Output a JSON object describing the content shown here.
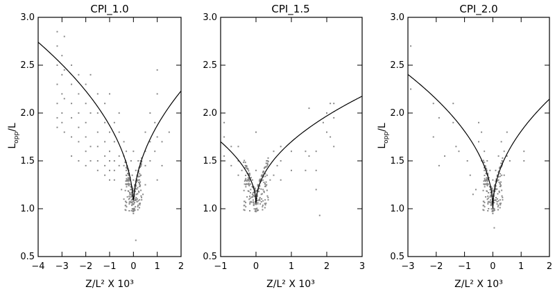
{
  "chart_data": [
    {
      "type": "scatter",
      "title": "CPI_1.0",
      "xlabel": "Z/L² X 10³",
      "ylabel_main": "L",
      "ylabel_sub": "opp",
      "ylabel_tail": "/L",
      "xlim": [
        -4,
        2
      ],
      "ylim": [
        0.5,
        3.0
      ],
      "xticks": [
        -4,
        -3,
        -2,
        -1,
        0,
        1,
        2
      ],
      "yticks": [
        0.5,
        1.0,
        1.5,
        2.0,
        2.5,
        3.0
      ],
      "xtick_labels": [
        "−4",
        "−3",
        "−2",
        "−1",
        "0",
        "1",
        "2"
      ],
      "ytick_labels": [
        "0.5",
        "1.0",
        "1.5",
        "2.0",
        "2.5",
        "3.0"
      ],
      "fit_curve": {
        "a": 1.0,
        "b": 0.87,
        "xmin": -4,
        "xmax": 2
      },
      "points": [
        [
          -3.2,
          2.85
        ],
        [
          -3.2,
          2.7
        ],
        [
          -3.2,
          2.5
        ],
        [
          -3.2,
          2.3
        ],
        [
          -3.2,
          2.1
        ],
        [
          -3.2,
          1.95
        ],
        [
          -3.2,
          1.85
        ],
        [
          -3.0,
          2.6
        ],
        [
          -3.0,
          2.4
        ],
        [
          -3.0,
          2.2
        ],
        [
          -3.0,
          2.0
        ],
        [
          -3.0,
          1.9
        ],
        [
          -2.9,
          2.8
        ],
        [
          -2.9,
          2.45
        ],
        [
          -2.9,
          2.15
        ],
        [
          -2.9,
          1.8
        ],
        [
          -2.6,
          2.5
        ],
        [
          -2.6,
          2.3
        ],
        [
          -2.6,
          2.1
        ],
        [
          -2.6,
          1.95
        ],
        [
          -2.6,
          1.75
        ],
        [
          -2.6,
          1.55
        ],
        [
          -2.3,
          2.4
        ],
        [
          -2.3,
          2.2
        ],
        [
          -2.3,
          2.0
        ],
        [
          -2.3,
          1.85
        ],
        [
          -2.3,
          1.7
        ],
        [
          -2.3,
          1.5
        ],
        [
          -2.0,
          2.3
        ],
        [
          -2.0,
          2.1
        ],
        [
          -2.0,
          1.9
        ],
        [
          -2.0,
          1.75
        ],
        [
          -2.0,
          1.6
        ],
        [
          -2.0,
          1.45
        ],
        [
          -1.8,
          2.4
        ],
        [
          -1.8,
          2.0
        ],
        [
          -1.8,
          1.65
        ],
        [
          -1.8,
          1.5
        ],
        [
          -1.5,
          2.2
        ],
        [
          -1.5,
          2.0
        ],
        [
          -1.5,
          1.8
        ],
        [
          -1.5,
          1.65
        ],
        [
          -1.5,
          1.5
        ],
        [
          -1.5,
          1.4
        ],
        [
          -1.2,
          2.1
        ],
        [
          -1.2,
          1.9
        ],
        [
          -1.2,
          1.7
        ],
        [
          -1.2,
          1.55
        ],
        [
          -1.2,
          1.45
        ],
        [
          -1.2,
          1.35
        ],
        [
          -1.0,
          2.2
        ],
        [
          -1.0,
          1.8
        ],
        [
          -1.0,
          1.6
        ],
        [
          -1.0,
          1.5
        ],
        [
          -1.0,
          1.4
        ],
        [
          -0.8,
          1.9
        ],
        [
          -0.8,
          1.7
        ],
        [
          -0.8,
          1.5
        ],
        [
          -0.8,
          1.4
        ],
        [
          -0.8,
          1.3
        ],
        [
          -0.6,
          2.0
        ],
        [
          -0.6,
          1.8
        ],
        [
          -0.6,
          1.55
        ],
        [
          -0.6,
          1.45
        ],
        [
          -0.4,
          1.7
        ],
        [
          -0.4,
          1.55
        ],
        [
          -0.4,
          1.45
        ],
        [
          -0.3,
          1.6
        ],
        [
          -0.3,
          1.4
        ],
        [
          -0.3,
          1.35
        ],
        [
          -0.25,
          1.3
        ],
        [
          -0.2,
          1.35
        ],
        [
          -0.2,
          1.25
        ],
        [
          -0.15,
          1.3
        ],
        [
          -0.12,
          1.2
        ],
        [
          -0.1,
          1.25
        ],
        [
          -0.1,
          1.15
        ],
        [
          -0.06,
          1.2
        ],
        [
          -0.05,
          1.1
        ],
        [
          -0.03,
          1.05
        ],
        [
          -0.02,
          1.0
        ],
        [
          0.0,
          0.95
        ],
        [
          0.01,
          1.05
        ],
        [
          0.02,
          1.12
        ],
        [
          0.04,
          1.0
        ],
        [
          0.05,
          1.2
        ],
        [
          0.07,
          1.1
        ],
        [
          0.1,
          1.25
        ],
        [
          0.12,
          1.15
        ],
        [
          0.15,
          1.3
        ],
        [
          0.18,
          1.22
        ],
        [
          0.2,
          1.4
        ],
        [
          0.25,
          1.3
        ],
        [
          0.3,
          1.5
        ],
        [
          0.3,
          1.35
        ],
        [
          0.5,
          1.6
        ],
        [
          0.5,
          1.45
        ],
        [
          0.5,
          1.8
        ],
        [
          0.7,
          1.7
        ],
        [
          0.7,
          1.5
        ],
        [
          0.7,
          2.0
        ],
        [
          0.9,
          1.9
        ],
        [
          0.9,
          1.6
        ],
        [
          1.0,
          2.45
        ],
        [
          1.0,
          2.2
        ],
        [
          1.0,
          1.75
        ],
        [
          1.2,
          1.7
        ],
        [
          1.5,
          1.8
        ],
        [
          -0.5,
          1.2
        ],
        [
          -0.4,
          1.1
        ],
        [
          0.4,
          1.15
        ],
        [
          0.5,
          1.25
        ],
        [
          -1.0,
          1.3
        ],
        [
          1.0,
          1.3
        ],
        [
          1.2,
          1.45
        ],
        [
          0.1,
          0.67
        ],
        [
          -0.2,
          1.4
        ],
        [
          0.2,
          1.5
        ],
        [
          0.0,
          1.6
        ],
        [
          -0.1,
          1.5
        ],
        [
          0.1,
          1.4
        ],
        [
          0.0,
          1.3
        ],
        [
          -0.05,
          1.35
        ],
        [
          0.05,
          1.25
        ],
        [
          -0.15,
          1.15
        ],
        [
          0.15,
          1.1
        ],
        [
          -0.08,
          0.98
        ],
        [
          0.08,
          1.02
        ]
      ]
    },
    {
      "type": "scatter",
      "title": "CPI_1.5",
      "xlabel": "Z/L² X 10³",
      "xlim": [
        -1,
        3
      ],
      "ylim": [
        0.5,
        3.0
      ],
      "xticks": [
        -1,
        0,
        1,
        2,
        3
      ],
      "yticks": [
        0.5,
        1.0,
        1.5,
        2.0,
        2.5,
        3.0
      ],
      "xtick_labels": [
        "−1",
        "0",
        "1",
        "2",
        "3"
      ],
      "ytick_labels": [
        "0.5",
        "1.0",
        "1.5",
        "2.0",
        "2.5",
        "3.0"
      ],
      "fit_curve": {
        "a": 1.05,
        "b": 0.65,
        "xmin": -1,
        "xmax": 3
      },
      "points": [
        [
          -0.9,
          1.75
        ],
        [
          -0.9,
          1.55
        ],
        [
          -0.9,
          1.9
        ],
        [
          -0.7,
          1.65
        ],
        [
          -0.7,
          1.45
        ],
        [
          -0.5,
          1.5
        ],
        [
          -0.5,
          1.35
        ],
        [
          -0.5,
          1.65
        ],
        [
          -0.4,
          1.4
        ],
        [
          -0.3,
          1.3
        ],
        [
          -0.3,
          1.45
        ],
        [
          -0.2,
          1.25
        ],
        [
          -0.2,
          1.35
        ],
        [
          -0.15,
          1.2
        ],
        [
          -0.1,
          1.15
        ],
        [
          -0.1,
          1.3
        ],
        [
          -0.05,
          1.05
        ],
        [
          -0.05,
          1.2
        ],
        [
          0.0,
          1.0
        ],
        [
          0.0,
          1.1
        ],
        [
          0.0,
          1.4
        ],
        [
          0.0,
          1.8
        ],
        [
          0.05,
          1.05
        ],
        [
          0.05,
          1.25
        ],
        [
          0.1,
          1.1
        ],
        [
          0.1,
          1.3
        ],
        [
          0.15,
          1.15
        ],
        [
          0.2,
          1.2
        ],
        [
          0.2,
          1.35
        ],
        [
          0.3,
          1.25
        ],
        [
          0.3,
          1.5
        ],
        [
          0.4,
          1.3
        ],
        [
          0.5,
          1.35
        ],
        [
          0.5,
          1.6
        ],
        [
          0.6,
          1.45
        ],
        [
          0.7,
          1.65
        ],
        [
          0.7,
          1.5
        ],
        [
          0.7,
          1.3
        ],
        [
          1.0,
          1.6
        ],
        [
          1.0,
          1.4
        ],
        [
          1.4,
          1.4
        ],
        [
          1.4,
          1.6
        ],
        [
          1.5,
          2.05
        ],
        [
          1.5,
          1.55
        ],
        [
          1.7,
          1.4
        ],
        [
          1.7,
          1.2
        ],
        [
          1.7,
          1.6
        ],
        [
          1.8,
          0.93
        ],
        [
          1.9,
          1.9
        ],
        [
          2.0,
          1.8
        ],
        [
          2.0,
          2.0
        ],
        [
          2.1,
          2.1
        ],
        [
          2.1,
          1.75
        ],
        [
          2.2,
          1.65
        ],
        [
          2.2,
          1.95
        ],
        [
          2.2,
          2.1
        ],
        [
          -0.08,
          1.22
        ],
        [
          0.08,
          1.18
        ],
        [
          -0.12,
          1.12
        ],
        [
          0.12,
          1.05
        ]
      ]
    },
    {
      "type": "scatter",
      "title": "CPI_2.0",
      "xlabel": "Z/L² X 10³",
      "ylabel_main": "L",
      "ylabel_sub": "opp",
      "ylabel_tail": "/L",
      "xlim": [
        -3,
        2
      ],
      "ylim": [
        0.5,
        3.0
      ],
      "xticks": [
        -3,
        -2,
        -1,
        0,
        1,
        2
      ],
      "yticks": [
        0.5,
        1.0,
        1.5,
        2.0,
        2.5,
        3.0
      ],
      "xtick_labels": [
        "−3",
        "−2",
        "−1",
        "0",
        "1",
        "2"
      ],
      "ytick_labels": [
        "0.5",
        "1.0",
        "1.5",
        "2.0",
        "2.5",
        "3.0"
      ],
      "fit_curve": {
        "a": 1.0,
        "b": 0.81,
        "xmin": -3,
        "xmax": 2
      },
      "points": [
        [
          -2.9,
          2.7
        ],
        [
          -2.9,
          2.25
        ],
        [
          -2.1,
          2.1
        ],
        [
          -2.1,
          1.75
        ],
        [
          -1.9,
          1.95
        ],
        [
          -1.9,
          1.45
        ],
        [
          -1.7,
          1.55
        ],
        [
          -1.4,
          2.1
        ],
        [
          -1.4,
          1.9
        ],
        [
          -1.3,
          1.65
        ],
        [
          -1.2,
          1.6
        ],
        [
          -0.9,
          1.5
        ],
        [
          -0.8,
          1.35
        ],
        [
          -0.7,
          1.15
        ],
        [
          -0.6,
          1.2
        ],
        [
          -0.5,
          1.9
        ],
        [
          -0.5,
          1.7
        ],
        [
          -0.4,
          1.8
        ],
        [
          -0.4,
          1.5
        ],
        [
          -0.3,
          1.4
        ],
        [
          -0.3,
          1.6
        ],
        [
          -0.2,
          1.25
        ],
        [
          -0.2,
          1.5
        ],
        [
          -0.1,
          1.2
        ],
        [
          -0.1,
          1.4
        ],
        [
          -0.05,
          1.05
        ],
        [
          0.0,
          0.95
        ],
        [
          0.0,
          1.1
        ],
        [
          0.0,
          1.3
        ],
        [
          0.05,
          1.0
        ],
        [
          0.1,
          1.2
        ],
        [
          0.1,
          1.4
        ],
        [
          0.2,
          1.3
        ],
        [
          0.2,
          1.55
        ],
        [
          0.3,
          1.45
        ],
        [
          0.3,
          1.7
        ],
        [
          0.4,
          1.6
        ],
        [
          0.4,
          1.35
        ],
        [
          0.5,
          1.8
        ],
        [
          0.5,
          1.55
        ],
        [
          0.6,
          1.5
        ],
        [
          1.1,
          1.5
        ],
        [
          1.1,
          1.6
        ],
        [
          0.05,
          0.8
        ],
        [
          -0.15,
          1.0
        ],
        [
          0.15,
          1.05
        ]
      ]
    }
  ]
}
